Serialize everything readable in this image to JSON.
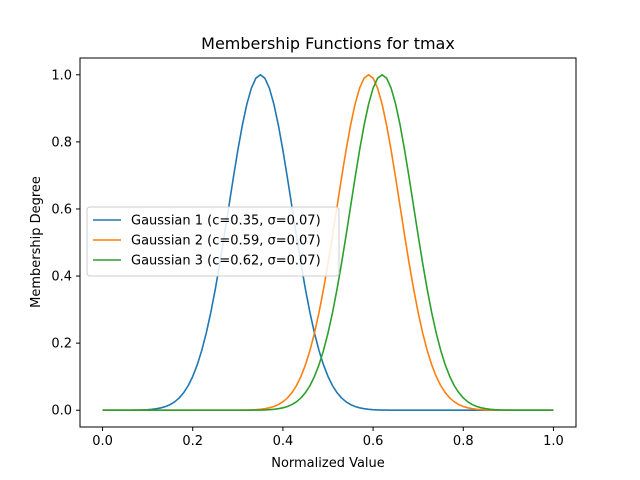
{
  "chart_data": {
    "type": "line",
    "title": "Membership Functions for tmax",
    "xlabel": "Normalized Value",
    "ylabel": "Membership Degree",
    "xlim": [
      -0.05,
      1.05
    ],
    "ylim": [
      -0.05,
      1.05
    ],
    "xticks": [
      0.0,
      0.2,
      0.4,
      0.6,
      0.8,
      1.0
    ],
    "xtick_labels": [
      "0.0",
      "0.2",
      "0.4",
      "0.6",
      "0.8",
      "1.0"
    ],
    "yticks": [
      0.0,
      0.2,
      0.4,
      0.6,
      0.8,
      1.0
    ],
    "ytick_labels": [
      "0.0",
      "0.2",
      "0.4",
      "0.6",
      "0.8",
      "1.0"
    ],
    "grid": false,
    "legend_position": "center-left",
    "x_domain": [
      0.0,
      1.0
    ],
    "series": [
      {
        "name": "Gaussian 1 (c=0.35, σ=0.07)",
        "function": "gaussian",
        "c": 0.35,
        "sigma": 0.07,
        "color": "#1f77b4"
      },
      {
        "name": "Gaussian 2 (c=0.59, σ=0.07)",
        "function": "gaussian",
        "c": 0.59,
        "sigma": 0.07,
        "color": "#ff7f0e"
      },
      {
        "name": "Gaussian 3 (c=0.62, σ=0.07)",
        "function": "gaussian",
        "c": 0.62,
        "sigma": 0.07,
        "color": "#2ca02c"
      }
    ]
  }
}
